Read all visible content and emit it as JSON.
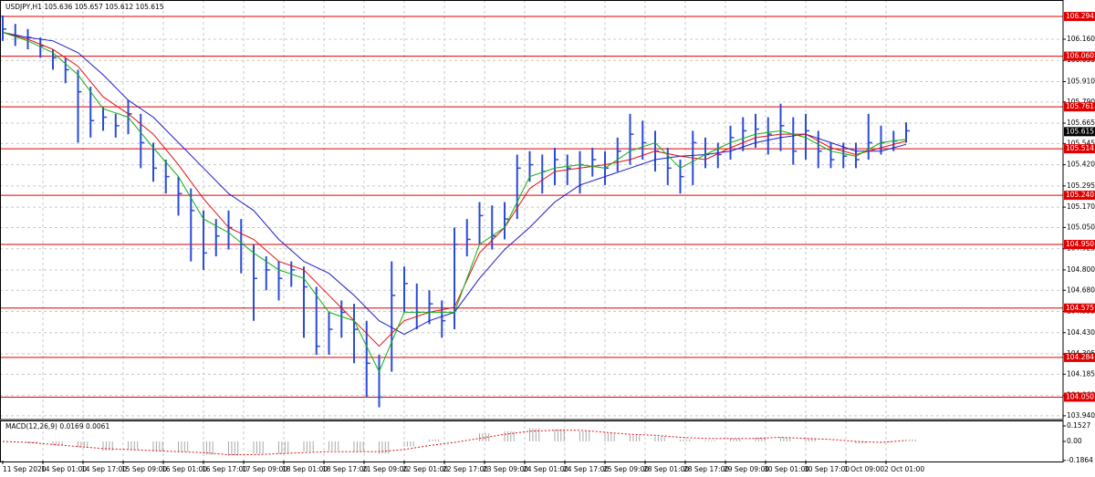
{
  "chart_data": {
    "type": "ohlc",
    "title": "USDJPY,H1  105.636 105.657 105.612 105.615",
    "last_price": 105.615,
    "bar_color": "#2a4bd7",
    "grid": true,
    "xlim": [
      0,
      421.45
    ],
    "ylim": [
      103.918,
      106.391
    ],
    "yticks": [
      {
        "value": 106.16,
        "label": "106.160"
      },
      106.035,
      {
        "value": 105.91,
        "label": "105.910"
      },
      {
        "value": 105.79,
        "label": "105.790"
      },
      105.665,
      105.545,
      {
        "value": 105.42,
        "label": "105.420"
      },
      105.295,
      {
        "value": 105.17,
        "label": "105.170"
      },
      {
        "value": 105.05,
        "label": "105.050"
      },
      104.925,
      {
        "value": 104.8,
        "label": "104.800"
      },
      {
        "value": 104.68,
        "label": "104.680"
      },
      104.555,
      {
        "value": 104.43,
        "label": "104.430"
      },
      104.305,
      104.185,
      {
        "value": 104.06,
        "label": "104.060"
      },
      {
        "value": 103.94,
        "label": "103.940"
      }
    ],
    "xticks": [
      {
        "value": 0,
        "label": "11 Sep 2020"
      },
      {
        "value": 16,
        "label": "14 Sep 01:00"
      },
      {
        "value": 32,
        "label": "14 Sep 17:00"
      },
      {
        "value": 48,
        "label": "15 Sep 09:00"
      },
      {
        "value": 64,
        "label": "16 Sep 01:00"
      },
      {
        "value": 80,
        "label": "16 Sep 17:00"
      },
      {
        "value": 96,
        "label": "17 Sep 09:00"
      },
      {
        "value": 112,
        "label": "18 Sep 01:00"
      },
      {
        "value": 128,
        "label": "18 Sep 17:00"
      },
      {
        "value": 144,
        "label": "21 Sep 09:00"
      },
      {
        "value": 160,
        "label": "22 Sep 01:00"
      },
      {
        "value": 176,
        "label": "22 Sep 17:00"
      },
      {
        "value": 192,
        "label": "23 Sep 09:00"
      },
      {
        "value": 208,
        "label": "24 Sep 01:00"
      },
      {
        "value": 224,
        "label": "24 Sep 17:00"
      },
      {
        "value": 240,
        "label": "25 Sep 09:00"
      },
      {
        "value": 256,
        "label": "28 Sep 01:00"
      },
      {
        "value": 272,
        "label": "28 Sep 17:00"
      },
      {
        "value": 288,
        "label": "29 Sep 09:00"
      },
      {
        "value": 304,
        "label": "30 Sep 01:00"
      },
      {
        "value": 320,
        "label": "30 Sep 17:00"
      },
      {
        "value": 336,
        "label": "1 Oct 09:00"
      },
      {
        "value": 352,
        "label": "2 Oct 01:00"
      }
    ],
    "levels": {
      "color": "#e00000",
      "values": [
        106.294,
        {
          "value": 106.06,
          "label": "106.060"
        },
        105.761,
        105.514,
        {
          "value": 105.24,
          "label": "105.240"
        },
        {
          "value": 104.95,
          "label": "104.950"
        },
        104.575,
        104.284,
        {
          "value": 104.05,
          "label": "104.050"
        }
      ]
    },
    "x": [
      0,
      5,
      10,
      15,
      20,
      25,
      30,
      35,
      40,
      45,
      50,
      55,
      60,
      65,
      70,
      75,
      80,
      85,
      90,
      95,
      100,
      105,
      110,
      115,
      120,
      125,
      130,
      135,
      140,
      145,
      150,
      155,
      160,
      165,
      170,
      175,
      180,
      185,
      190,
      195,
      200,
      205,
      210,
      215,
      220,
      225,
      230,
      235,
      240,
      245,
      250,
      255,
      260,
      265,
      270,
      275,
      280,
      285,
      290,
      295,
      300,
      305,
      310,
      315,
      320,
      325,
      330,
      335,
      340,
      345,
      350,
      355,
      360
    ],
    "high": [
      106.3,
      106.25,
      106.22,
      106.17,
      106.1,
      106.05,
      105.98,
      105.88,
      105.76,
      105.72,
      105.8,
      105.72,
      105.55,
      105.45,
      105.35,
      105.28,
      105.15,
      105.1,
      105.15,
      105.1,
      104.95,
      104.88,
      104.85,
      104.85,
      104.82,
      104.7,
      104.55,
      104.62,
      104.6,
      104.5,
      104.3,
      104.85,
      104.82,
      104.72,
      104.68,
      104.62,
      105.05,
      105.1,
      105.2,
      105.18,
      105.2,
      105.48,
      105.5,
      105.48,
      105.52,
      105.48,
      105.5,
      105.52,
      105.5,
      105.58,
      105.72,
      105.68,
      105.62,
      105.52,
      105.45,
      105.62,
      105.58,
      105.55,
      105.65,
      105.7,
      105.72,
      105.7,
      105.78,
      105.7,
      105.72,
      105.62,
      105.55,
      105.55,
      105.55,
      105.72,
      105.65,
      105.62,
      105.67
    ],
    "low": [
      106.15,
      106.12,
      106.1,
      106.05,
      105.98,
      105.9,
      105.55,
      105.58,
      105.62,
      105.58,
      105.6,
      105.4,
      105.32,
      105.25,
      105.12,
      104.85,
      104.8,
      104.88,
      104.92,
      104.78,
      104.5,
      104.68,
      104.62,
      104.7,
      104.4,
      104.3,
      104.3,
      104.4,
      104.25,
      104.05,
      103.99,
      104.2,
      104.55,
      104.45,
      104.48,
      104.4,
      104.45,
      104.88,
      104.95,
      104.92,
      104.98,
      105.1,
      105.32,
      105.25,
      105.3,
      105.3,
      105.25,
      105.35,
      105.3,
      105.38,
      105.42,
      105.45,
      105.38,
      105.3,
      105.25,
      105.3,
      105.4,
      105.4,
      105.45,
      105.5,
      105.52,
      105.48,
      105.5,
      105.42,
      105.45,
      105.4,
      105.4,
      105.4,
      105.4,
      105.45,
      105.48,
      105.5,
      105.55
    ],
    "close": [
      106.22,
      106.18,
      106.17,
      106.12,
      106.05,
      105.98,
      105.85,
      105.68,
      105.7,
      105.65,
      105.72,
      105.55,
      105.4,
      105.35,
      105.25,
      105.15,
      104.9,
      105.0,
      105.05,
      104.95,
      104.75,
      104.8,
      104.75,
      104.8,
      104.7,
      104.35,
      104.45,
      104.55,
      104.45,
      104.25,
      104.05,
      104.65,
      104.72,
      104.55,
      104.6,
      104.5,
      104.95,
      104.98,
      105.12,
      105.0,
      105.1,
      105.4,
      105.42,
      105.38,
      105.45,
      105.4,
      105.42,
      105.45,
      105.4,
      105.5,
      105.6,
      105.55,
      105.5,
      105.4,
      105.35,
      105.55,
      105.48,
      105.48,
      105.58,
      105.62,
      105.63,
      105.6,
      105.65,
      105.5,
      105.62,
      105.5,
      105.45,
      105.47,
      105.45,
      105.55,
      105.55,
      105.56,
      105.62
    ],
    "line_x": [
      0,
      10,
      20,
      30,
      40,
      50,
      60,
      70,
      80,
      90,
      100,
      110,
      120,
      130,
      140,
      150,
      160,
      170,
      180,
      190,
      200,
      210,
      220,
      230,
      240,
      250,
      260,
      270,
      280,
      290,
      300,
      310,
      320,
      330,
      340,
      350,
      360
    ],
    "lines": [
      {
        "color": "#1c1cc8",
        "values": [
          106.2,
          106.17,
          106.15,
          106.08,
          105.95,
          105.8,
          105.7,
          105.55,
          105.4,
          105.25,
          105.15,
          104.98,
          104.85,
          104.78,
          104.65,
          104.5,
          104.42,
          104.5,
          104.55,
          104.75,
          104.92,
          105.05,
          105.2,
          105.3,
          105.35,
          105.4,
          105.45,
          105.47,
          105.48,
          105.5,
          105.55,
          105.58,
          105.6,
          105.55,
          105.5,
          105.5,
          105.54
        ]
      },
      {
        "color": "#e01010",
        "values": [
          106.2,
          106.16,
          106.1,
          106.0,
          105.82,
          105.72,
          105.6,
          105.42,
          105.22,
          105.05,
          104.98,
          104.85,
          104.8,
          104.65,
          104.5,
          104.35,
          104.5,
          104.55,
          104.58,
          104.9,
          105.05,
          105.28,
          105.38,
          105.4,
          105.42,
          105.45,
          105.5,
          105.47,
          105.45,
          105.52,
          105.58,
          105.6,
          105.6,
          105.52,
          105.48,
          105.52,
          105.56
        ]
      },
      {
        "color": "#10b010",
        "values": [
          106.2,
          106.15,
          106.08,
          105.95,
          105.75,
          105.7,
          105.52,
          105.35,
          105.1,
          105.02,
          104.9,
          104.8,
          104.75,
          104.55,
          104.5,
          104.2,
          104.55,
          104.55,
          104.55,
          104.95,
          105.05,
          105.35,
          105.4,
          105.42,
          105.4,
          105.5,
          105.55,
          105.4,
          105.48,
          105.55,
          105.6,
          105.62,
          105.58,
          105.5,
          105.47,
          105.55,
          105.57
        ]
      }
    ],
    "macd": {
      "title": "MACD(12,26,9) 0.0169 0.0061",
      "y2lim": [
        -0.206,
        0.206
      ],
      "y2ticks": [
        0.1527,
        {
          "value": 0,
          "label": "0.00"
        },
        -0.1864
      ],
      "hist_color": "#a8a8a8",
      "signal_color": "#e01010",
      "hist": [
        0.0,
        -0.02,
        -0.04,
        -0.06,
        -0.09,
        -0.08,
        -0.1,
        -0.1,
        -0.13,
        -0.14,
        -0.12,
        -0.12,
        -0.1,
        -0.09,
        -0.1,
        -0.12,
        -0.05,
        0.02,
        0.0,
        0.08,
        0.1,
        0.13,
        0.12,
        0.1,
        0.08,
        0.06,
        0.05,
        0.02,
        0.01,
        0.03,
        0.04,
        0.04,
        0.03,
        0.0,
        -0.02,
        -0.01,
        0.02
      ],
      "signal": [
        0.0,
        -0.01,
        -0.03,
        -0.05,
        -0.07,
        -0.08,
        -0.09,
        -0.1,
        -0.11,
        -0.13,
        -0.13,
        -0.12,
        -0.11,
        -0.1,
        -0.1,
        -0.1,
        -0.08,
        -0.04,
        -0.01,
        0.03,
        0.07,
        0.1,
        0.11,
        0.11,
        0.09,
        0.07,
        0.06,
        0.04,
        0.03,
        0.03,
        0.03,
        0.04,
        0.03,
        0.02,
        0.0,
        -0.01,
        0.01
      ]
    }
  }
}
